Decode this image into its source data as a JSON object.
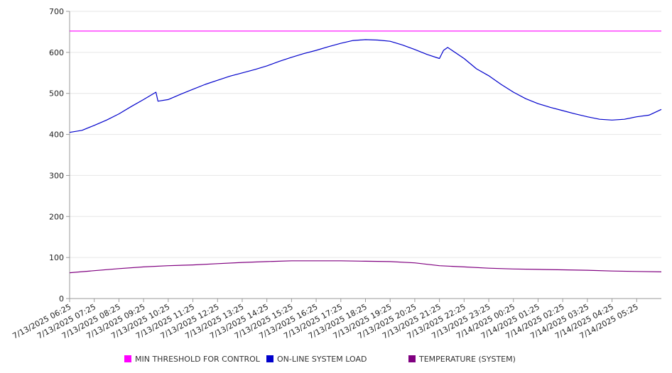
{
  "chart_data": {
    "type": "line",
    "title": "",
    "xlabel": "",
    "ylabel": "",
    "ylim": [
      0,
      700
    ],
    "yticks": [
      "0",
      "100",
      "200",
      "300",
      "400",
      "500",
      "600",
      "700"
    ],
    "xtick_labels": [
      "7/13/2025 06:25",
      "7/13/2025 07:25",
      "7/13/2025 08:25",
      "7/13/2025 09:25",
      "7/13/2025 10:25",
      "7/13/2025 11:25",
      "7/13/2025 12:25",
      "7/13/2025 13:25",
      "7/13/2025 14:25",
      "7/13/2025 15:25",
      "7/13/2025 16:25",
      "7/13/2025 17:25",
      "7/13/2025 18:25",
      "7/13/2025 19:25",
      "7/13/2025 20:25",
      "7/13/2025 21:25",
      "7/13/2025 22:25",
      "7/13/2025 23:25",
      "7/14/2025 00:25",
      "7/14/2025 01:25",
      "7/14/2025 02:25",
      "7/14/2025 03:25",
      "7/14/2025 04:25",
      "7/14/2025 05:25"
    ],
    "x_range": [
      "7/13/2025 06:25",
      "7/14/2025 06:25"
    ],
    "grid": "horizontal",
    "legend_position": "bottom",
    "series": [
      {
        "name": "MIN THRESHOLD FOR CONTROL",
        "color": "#ff00ff",
        "points": [
          [
            "7/13/2025 06:25",
            652
          ],
          [
            "7/14/2025 06:25",
            652
          ]
        ]
      },
      {
        "name": "ON-LINE SYSTEM LOAD",
        "color": "#0000cc",
        "points": [
          [
            "7/13/2025 06:25",
            405
          ],
          [
            "7/13/2025 06:55",
            410
          ],
          [
            "7/13/2025 07:25",
            422
          ],
          [
            "7/13/2025 07:55",
            435
          ],
          [
            "7/13/2025 08:25",
            450
          ],
          [
            "7/13/2025 08:55",
            468
          ],
          [
            "7/13/2025 09:25",
            485
          ],
          [
            "7/13/2025 09:55",
            503
          ],
          [
            "7/13/2025 10:00",
            481
          ],
          [
            "7/13/2025 10:25",
            485
          ],
          [
            "7/13/2025 10:55",
            498
          ],
          [
            "7/13/2025 11:25",
            510
          ],
          [
            "7/13/2025 11:55",
            522
          ],
          [
            "7/13/2025 12:25",
            532
          ],
          [
            "7/13/2025 12:55",
            542
          ],
          [
            "7/13/2025 13:25",
            550
          ],
          [
            "7/13/2025 13:55",
            558
          ],
          [
            "7/13/2025 14:25",
            567
          ],
          [
            "7/13/2025 14:55",
            578
          ],
          [
            "7/13/2025 15:25",
            588
          ],
          [
            "7/13/2025 15:55",
            597
          ],
          [
            "7/13/2025 16:25",
            605
          ],
          [
            "7/13/2025 16:55",
            614
          ],
          [
            "7/13/2025 17:25",
            622
          ],
          [
            "7/13/2025 17:55",
            629
          ],
          [
            "7/13/2025 18:25",
            631
          ],
          [
            "7/13/2025 18:55",
            630
          ],
          [
            "7/13/2025 19:25",
            627
          ],
          [
            "7/13/2025 19:55",
            618
          ],
          [
            "7/13/2025 20:25",
            607
          ],
          [
            "7/13/2025 20:55",
            595
          ],
          [
            "7/13/2025 21:25",
            585
          ],
          [
            "7/13/2025 21:35",
            605
          ],
          [
            "7/13/2025 21:45",
            612
          ],
          [
            "7/13/2025 22:25",
            585
          ],
          [
            "7/13/2025 22:55",
            560
          ],
          [
            "7/13/2025 23:25",
            543
          ],
          [
            "7/13/2025 23:55",
            522
          ],
          [
            "7/14/2025 00:25",
            503
          ],
          [
            "7/14/2025 00:55",
            487
          ],
          [
            "7/14/2025 01:25",
            475
          ],
          [
            "7/14/2025 01:55",
            466
          ],
          [
            "7/14/2025 02:25",
            458
          ],
          [
            "7/14/2025 02:55",
            450
          ],
          [
            "7/14/2025 03:25",
            443
          ],
          [
            "7/14/2025 03:55",
            437
          ],
          [
            "7/14/2025 04:25",
            435
          ],
          [
            "7/14/2025 04:55",
            437
          ],
          [
            "7/14/2025 05:25",
            443
          ],
          [
            "7/14/2025 05:55",
            447
          ],
          [
            "7/14/2025 06:25",
            461
          ]
        ]
      },
      {
        "name": "TEMPERATURE (SYSTEM)",
        "color": "#800080",
        "points": [
          [
            "7/13/2025 06:25",
            63
          ],
          [
            "7/13/2025 07:25",
            68
          ],
          [
            "7/13/2025 08:25",
            73
          ],
          [
            "7/13/2025 09:25",
            77
          ],
          [
            "7/13/2025 10:25",
            80
          ],
          [
            "7/13/2025 11:25",
            82
          ],
          [
            "7/13/2025 12:25",
            85
          ],
          [
            "7/13/2025 13:25",
            88
          ],
          [
            "7/13/2025 14:25",
            90
          ],
          [
            "7/13/2025 15:25",
            92
          ],
          [
            "7/13/2025 16:25",
            92
          ],
          [
            "7/13/2025 17:25",
            92
          ],
          [
            "7/13/2025 18:25",
            91
          ],
          [
            "7/13/2025 19:25",
            90
          ],
          [
            "7/13/2025 20:25",
            87
          ],
          [
            "7/13/2025 21:25",
            80
          ],
          [
            "7/13/2025 22:25",
            77
          ],
          [
            "7/13/2025 23:25",
            74
          ],
          [
            "7/14/2025 00:25",
            72
          ],
          [
            "7/14/2025 01:25",
            71
          ],
          [
            "7/14/2025 02:25",
            70
          ],
          [
            "7/14/2025 03:25",
            69
          ],
          [
            "7/14/2025 04:25",
            67
          ],
          [
            "7/14/2025 05:25",
            66
          ],
          [
            "7/14/2025 06:25",
            65
          ]
        ]
      }
    ]
  }
}
